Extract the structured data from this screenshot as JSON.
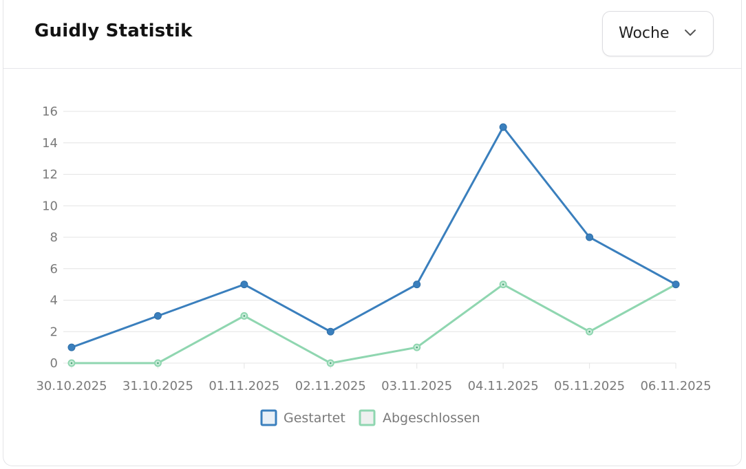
{
  "header": {
    "title": "Guidly Statistik",
    "period_select": {
      "value": "Woche"
    }
  },
  "icons": {
    "dropdown": "chevron-down-icon"
  },
  "colors": {
    "gestartet": "#3a7fbd",
    "abgeschlossen": "#8fd6b0",
    "grid": "#e4e4e4",
    "tick_text": "#7a7a7a"
  },
  "chart_data": {
    "type": "line",
    "title": "",
    "xlabel": "",
    "ylabel": "",
    "x": [
      "30.10.2025",
      "31.10.2025",
      "01.11.2025",
      "02.11.2025",
      "03.11.2025",
      "04.11.2025",
      "05.11.2025",
      "06.11.2025"
    ],
    "ylim": [
      0,
      16
    ],
    "yticks": [
      0,
      2,
      4,
      6,
      8,
      10,
      12,
      14,
      16
    ],
    "grid": true,
    "legend_position": "bottom",
    "series": [
      {
        "name": "Gestartet",
        "values": [
          1,
          3,
          5,
          2,
          5,
          15,
          8,
          5
        ],
        "color": "#3a7fbd"
      },
      {
        "name": "Abgeschlossen",
        "values": [
          0,
          0,
          3,
          0,
          1,
          5,
          2,
          5
        ],
        "color": "#8fd6b0"
      }
    ]
  }
}
